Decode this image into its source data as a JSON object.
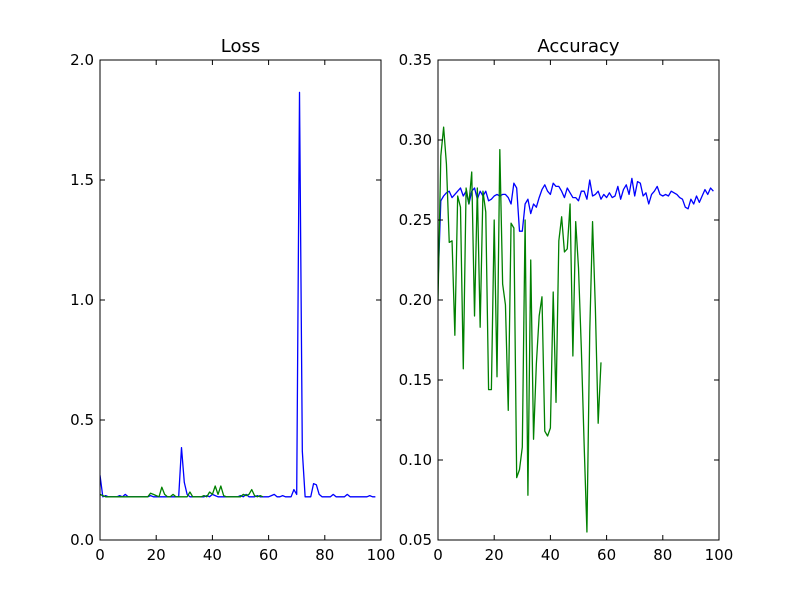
{
  "chart_data": [
    {
      "type": "line",
      "title": "Loss",
      "xlabel": "",
      "ylabel": "",
      "xlim": [
        0,
        100
      ],
      "ylim": [
        0,
        2.0
      ],
      "xticks": [
        0,
        20,
        40,
        60,
        80,
        100
      ],
      "xtick_labels": [
        "0",
        "20",
        "40",
        "60",
        "80",
        "100"
      ],
      "yticks": [
        0,
        0.5,
        1.0,
        1.5,
        2.0
      ],
      "ytick_labels": [
        "0.0",
        "0.5",
        "1.0",
        "1.5",
        "2.0"
      ],
      "grid": false,
      "series": [
        {
          "color": "#0000ff",
          "x": [
            0,
            1,
            2,
            3,
            4,
            5,
            6,
            7,
            8,
            9,
            10,
            11,
            12,
            13,
            14,
            15,
            16,
            17,
            18,
            19,
            20,
            21,
            22,
            23,
            24,
            25,
            26,
            27,
            28,
            29,
            30,
            31,
            32,
            33,
            34,
            35,
            36,
            37,
            38,
            39,
            40,
            41,
            42,
            43,
            44,
            45,
            46,
            47,
            48,
            49,
            50,
            51,
            52,
            53,
            54,
            55,
            56,
            57,
            58,
            59,
            60,
            61,
            62,
            63,
            64,
            65,
            66,
            67,
            68,
            69,
            70,
            71,
            72,
            73,
            74,
            75,
            76,
            77,
            78,
            79,
            80,
            81,
            82,
            83,
            84,
            85,
            86,
            87,
            88,
            89,
            90,
            91,
            92,
            93,
            94,
            95,
            96,
            97,
            98
          ],
          "y": [
            0.27,
            0.18,
            0.185,
            0.18,
            0.18,
            0.18,
            0.18,
            0.185,
            0.18,
            0.19,
            0.18,
            0.18,
            0.18,
            0.18,
            0.18,
            0.18,
            0.18,
            0.18,
            0.185,
            0.18,
            0.18,
            0.18,
            0.18,
            0.18,
            0.18,
            0.18,
            0.18,
            0.18,
            0.18,
            0.385,
            0.24,
            0.19,
            0.18,
            0.18,
            0.18,
            0.18,
            0.18,
            0.18,
            0.185,
            0.18,
            0.19,
            0.185,
            0.18,
            0.18,
            0.18,
            0.18,
            0.18,
            0.18,
            0.18,
            0.18,
            0.185,
            0.18,
            0.19,
            0.18,
            0.18,
            0.18,
            0.185,
            0.18,
            0.18,
            0.18,
            0.18,
            0.185,
            0.19,
            0.18,
            0.18,
            0.185,
            0.18,
            0.18,
            0.18,
            0.21,
            0.19,
            1.865,
            0.37,
            0.18,
            0.18,
            0.18,
            0.235,
            0.23,
            0.19,
            0.18,
            0.18,
            0.18,
            0.18,
            0.19,
            0.18,
            0.18,
            0.18,
            0.18,
            0.19,
            0.18,
            0.18,
            0.18,
            0.18,
            0.18,
            0.18,
            0.18,
            0.185,
            0.18,
            0.18
          ]
        },
        {
          "color": "#008000",
          "x": [
            0,
            1,
            2,
            3,
            4,
            5,
            6,
            7,
            8,
            9,
            10,
            11,
            12,
            13,
            14,
            15,
            16,
            17,
            18,
            19,
            20,
            21,
            22,
            23,
            24,
            25,
            26,
            27,
            28,
            29,
            30,
            31,
            32,
            33,
            34,
            35,
            36,
            37,
            38,
            39,
            40,
            41,
            42,
            43,
            44,
            45,
            46,
            47,
            48,
            49,
            50,
            51,
            52,
            53,
            54,
            55,
            56,
            57,
            58
          ],
          "y": [
            0.19,
            0.185,
            0.18,
            0.18,
            0.18,
            0.18,
            0.18,
            0.18,
            0.18,
            0.18,
            0.18,
            0.18,
            0.18,
            0.18,
            0.18,
            0.18,
            0.18,
            0.18,
            0.195,
            0.19,
            0.185,
            0.18,
            0.22,
            0.19,
            0.18,
            0.18,
            0.19,
            0.18,
            0.18,
            0.18,
            0.18,
            0.18,
            0.2,
            0.18,
            0.18,
            0.18,
            0.18,
            0.185,
            0.18,
            0.2,
            0.19,
            0.225,
            0.19,
            0.225,
            0.185,
            0.18,
            0.18,
            0.18,
            0.18,
            0.18,
            0.18,
            0.19,
            0.185,
            0.19,
            0.21,
            0.185,
            0.18,
            0.185,
            0.18
          ]
        }
      ]
    },
    {
      "type": "line",
      "title": "Accuracy",
      "xlabel": "",
      "ylabel": "",
      "xlim": [
        0,
        100
      ],
      "ylim": [
        0.05,
        0.35
      ],
      "xticks": [
        0,
        20,
        40,
        60,
        80,
        100
      ],
      "xtick_labels": [
        "0",
        "20",
        "40",
        "60",
        "80",
        "100"
      ],
      "yticks": [
        0.05,
        0.1,
        0.15,
        0.2,
        0.25,
        0.3,
        0.35
      ],
      "ytick_labels": [
        "0.05",
        "0.10",
        "0.15",
        "0.20",
        "0.25",
        "0.30",
        "0.35"
      ],
      "grid": false,
      "series": [
        {
          "color": "#0000ff",
          "x": [
            0,
            1,
            2,
            3,
            4,
            5,
            6,
            7,
            8,
            9,
            10,
            11,
            12,
            13,
            14,
            15,
            16,
            17,
            18,
            19,
            20,
            21,
            22,
            23,
            24,
            25,
            26,
            27,
            28,
            29,
            30,
            31,
            32,
            33,
            34,
            35,
            36,
            37,
            38,
            39,
            40,
            41,
            42,
            43,
            44,
            45,
            46,
            47,
            48,
            49,
            50,
            51,
            52,
            53,
            54,
            55,
            56,
            57,
            58,
            59,
            60,
            61,
            62,
            63,
            64,
            65,
            66,
            67,
            68,
            69,
            70,
            71,
            72,
            73,
            74,
            75,
            76,
            77,
            78,
            79,
            80,
            81,
            82,
            83,
            84,
            85,
            86,
            87,
            88,
            89,
            90,
            91,
            92,
            93,
            94,
            95,
            96,
            97,
            98
          ],
          "y": [
            0.21,
            0.262,
            0.265,
            0.267,
            0.268,
            0.264,
            0.266,
            0.268,
            0.27,
            0.265,
            0.268,
            0.26,
            0.268,
            0.27,
            0.263,
            0.268,
            0.265,
            0.268,
            0.262,
            0.263,
            0.265,
            0.266,
            0.265,
            0.266,
            0.266,
            0.264,
            0.26,
            0.273,
            0.27,
            0.243,
            0.243,
            0.26,
            0.263,
            0.254,
            0.26,
            0.258,
            0.264,
            0.269,
            0.272,
            0.268,
            0.266,
            0.273,
            0.271,
            0.271,
            0.268,
            0.264,
            0.27,
            0.267,
            0.264,
            0.264,
            0.262,
            0.268,
            0.268,
            0.263,
            0.275,
            0.265,
            0.266,
            0.268,
            0.263,
            0.266,
            0.264,
            0.267,
            0.264,
            0.265,
            0.271,
            0.263,
            0.269,
            0.272,
            0.266,
            0.276,
            0.265,
            0.274,
            0.273,
            0.265,
            0.267,
            0.26,
            0.266,
            0.268,
            0.271,
            0.266,
            0.265,
            0.266,
            0.265,
            0.268,
            0.267,
            0.266,
            0.264,
            0.263,
            0.258,
            0.257,
            0.263,
            0.26,
            0.265,
            0.261,
            0.265,
            0.269,
            0.266,
            0.27,
            0.268
          ]
        },
        {
          "color": "#008000",
          "x": [
            0,
            1,
            2,
            3,
            4,
            5,
            6,
            7,
            8,
            9,
            10,
            11,
            12,
            13,
            14,
            15,
            16,
            17,
            18,
            19,
            20,
            21,
            22,
            23,
            24,
            25,
            26,
            27,
            28,
            29,
            30,
            31,
            32,
            33,
            34,
            35,
            36,
            37,
            38,
            39,
            40,
            41,
            42,
            43,
            44,
            45,
            46,
            47,
            48,
            49,
            50,
            51,
            52,
            53,
            54,
            55,
            56,
            57,
            58
          ],
          "y": [
            0.2,
            0.29,
            0.308,
            0.285,
            0.236,
            0.237,
            0.178,
            0.265,
            0.258,
            0.157,
            0.27,
            0.26,
            0.28,
            0.19,
            0.27,
            0.183,
            0.268,
            0.255,
            0.144,
            0.144,
            0.25,
            0.152,
            0.294,
            0.21,
            0.197,
            0.131,
            0.248,
            0.245,
            0.089,
            0.094,
            0.108,
            0.25,
            0.078,
            0.225,
            0.113,
            0.16,
            0.19,
            0.202,
            0.118,
            0.115,
            0.12,
            0.205,
            0.136,
            0.237,
            0.252,
            0.23,
            0.232,
            0.26,
            0.165,
            0.249,
            0.22,
            0.17,
            0.11,
            0.055,
            0.18,
            0.249,
            0.195,
            0.123,
            0.161
          ]
        }
      ]
    }
  ]
}
